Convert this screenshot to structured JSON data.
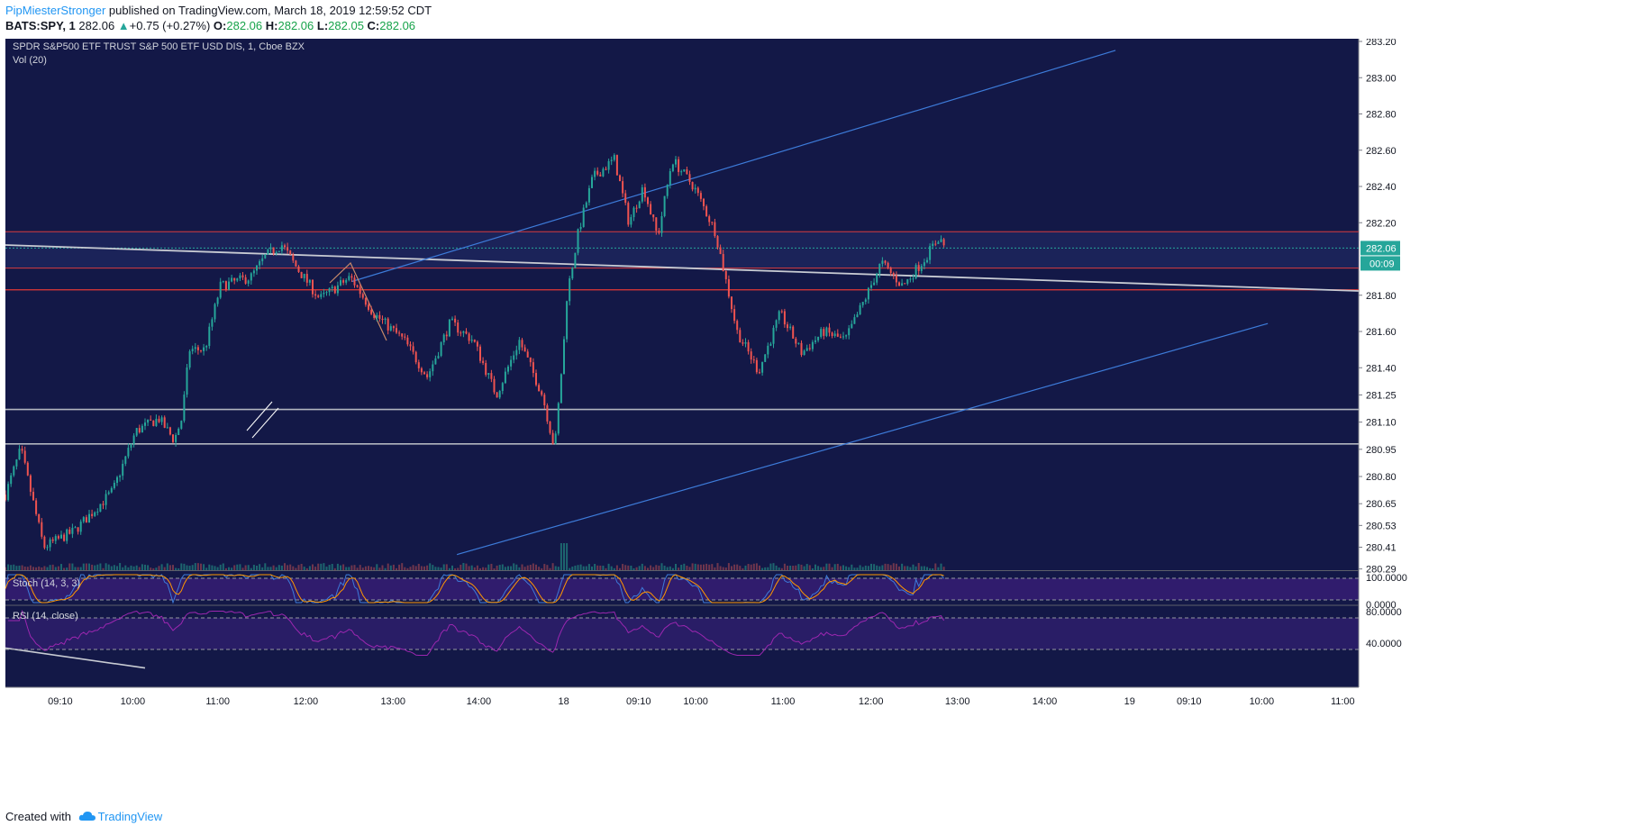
{
  "header": {
    "author": "PipMiesterStronger",
    "published_text": "published on TradingView.com, March 18, 2019 12:59:52 CDT",
    "symbol": "BATS:SPY, 1",
    "last": "282.06",
    "change": "+0.75 (+0.27%)",
    "o_label": "O:",
    "o_value": "282.06",
    "h_label": "H:",
    "h_value": "282.06",
    "l_label": "L:",
    "l_value": "282.05",
    "c_label": "C:",
    "c_value": "282.06"
  },
  "footer": {
    "created_with": "Created with",
    "brand": "TradingView"
  },
  "colors": {
    "background": "#131847",
    "up": "#26a69a",
    "down": "#ef5350",
    "resistance": "#e53935",
    "channel": "#3d7bd9",
    "trendline": "#b2b5be",
    "stoch_k": "#3d7bd9",
    "stoch_d": "#ff9800",
    "rsi": "#9c27b0"
  },
  "chart_data": {
    "type": "candlestick",
    "title": "SPDR S&P500 ETF TRUST S&P 500 ETF USD DIS, 1, Cboe BZX",
    "volume_label": "Vol (20)",
    "x_ticks": [
      "09:10",
      "10:00",
      "11:00",
      "12:00",
      "13:00",
      "14:00",
      "18",
      "09:10",
      "10:00",
      "11:00",
      "12:00",
      "13:00",
      "14:00",
      "19",
      "09:10",
      "10:00",
      "11:00"
    ],
    "y_ticks": [
      "283.20",
      "283.00",
      "282.80",
      "282.60",
      "282.40",
      "282.20",
      "281.80",
      "281.60",
      "281.40",
      "281.25",
      "281.10",
      "280.95",
      "280.80",
      "280.65",
      "280.53",
      "280.41",
      "280.29"
    ],
    "current_price": "282.06",
    "countdown": "00:09",
    "key_points": [
      {
        "x": "09:00",
        "price": 280.7
      },
      {
        "x": "09:10",
        "price": 280.95
      },
      {
        "x": "09:25",
        "price": 280.41
      },
      {
        "x": "09:45",
        "price": 280.5
      },
      {
        "x": "10:10",
        "price": 280.72
      },
      {
        "x": "10:25",
        "price": 281.05
      },
      {
        "x": "10:40",
        "price": 281.12
      },
      {
        "x": "10:50",
        "price": 281.0
      },
      {
        "x": "10:55",
        "price": 281.12
      },
      {
        "x": "11:00",
        "price": 281.5
      },
      {
        "x": "11:10",
        "price": 281.5
      },
      {
        "x": "11:20",
        "price": 281.85
      },
      {
        "x": "11:40",
        "price": 281.9
      },
      {
        "x": "11:50",
        "price": 282.02
      },
      {
        "x": "12:00",
        "price": 282.08
      },
      {
        "x": "12:10",
        "price": 281.95
      },
      {
        "x": "12:25",
        "price": 281.78
      },
      {
        "x": "12:45",
        "price": 281.9
      },
      {
        "x": "13:00",
        "price": 281.7
      },
      {
        "x": "13:20",
        "price": 281.55
      },
      {
        "x": "13:35",
        "price": 281.35
      },
      {
        "x": "13:50",
        "price": 281.65
      },
      {
        "x": "14:05",
        "price": 281.55
      },
      {
        "x": "14:20",
        "price": 281.25
      },
      {
        "x": "14:35",
        "price": 281.55
      },
      {
        "x": "14:50",
        "price": 281.25
      },
      {
        "x": "14:58",
        "price": 280.95
      },
      {
        "x": "18 09:00",
        "price": 281.55
      },
      {
        "x": "18 09:02",
        "price": 281.8
      },
      {
        "x": "18 09:10",
        "price": 282.15
      },
      {
        "x": "18 09:20",
        "price": 282.45
      },
      {
        "x": "18 09:35",
        "price": 282.55
      },
      {
        "x": "18 09:45",
        "price": 282.2
      },
      {
        "x": "18 09:55",
        "price": 282.4
      },
      {
        "x": "18 10:05",
        "price": 282.12
      },
      {
        "x": "18 10:15",
        "price": 282.55
      },
      {
        "x": "18 10:30",
        "price": 282.4
      },
      {
        "x": "18 10:45",
        "price": 282.15
      },
      {
        "x": "18 11:00",
        "price": 281.6
      },
      {
        "x": "18 11:15",
        "price": 281.38
      },
      {
        "x": "18 11:30",
        "price": 281.7
      },
      {
        "x": "18 11:45",
        "price": 281.48
      },
      {
        "x": "18 12:00",
        "price": 281.6
      },
      {
        "x": "18 12:15",
        "price": 281.55
      },
      {
        "x": "18 12:30",
        "price": 281.8
      },
      {
        "x": "18 12:40",
        "price": 281.98
      },
      {
        "x": "18 12:55",
        "price": 281.85
      },
      {
        "x": "18 13:10",
        "price": 282.0
      },
      {
        "x": "18 13:20",
        "price": 282.12
      },
      {
        "x": "18 13:25",
        "price": 282.06
      }
    ],
    "horizontal_lines": [
      {
        "price": 282.15,
        "color": "resistance"
      },
      {
        "price": 281.95,
        "color": "resistance"
      },
      {
        "price": 281.83,
        "color": "resistance"
      },
      {
        "price": 281.17,
        "color": "trendline"
      },
      {
        "price": 280.98,
        "color": "trendline"
      }
    ],
    "indicators": [
      {
        "name": "Stoch (14, 3, 3)",
        "y_ticks": [
          "100.0000",
          "0.0000"
        ]
      },
      {
        "name": "RSI (14, close)",
        "y_ticks": [
          "80.0000",
          "40.0000"
        ]
      }
    ]
  }
}
